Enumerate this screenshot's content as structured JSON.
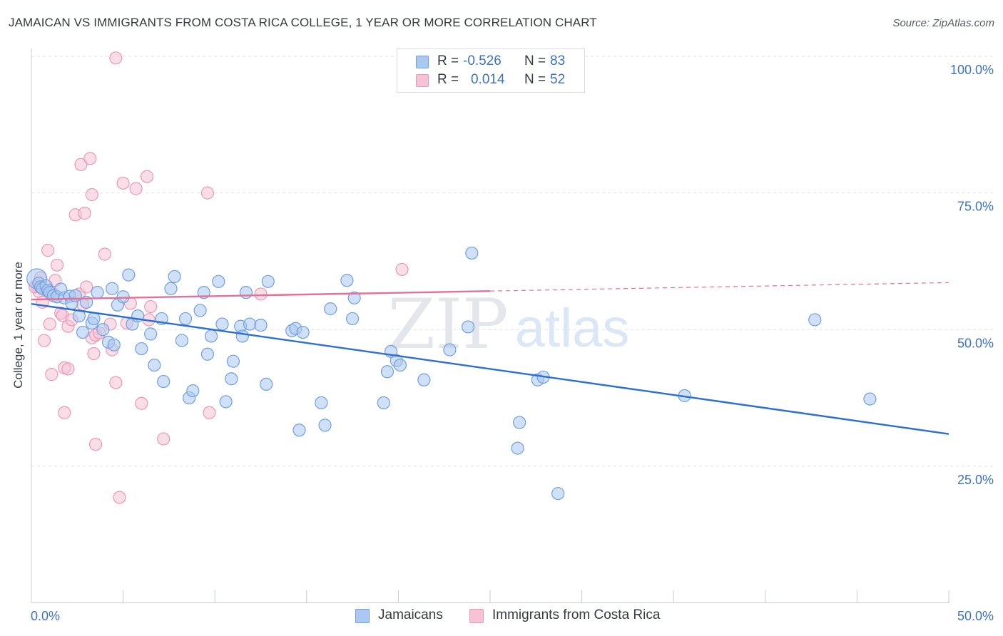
{
  "title": "JAMAICAN VS IMMIGRANTS FROM COSTA RICA COLLEGE, 1 YEAR OR MORE CORRELATION CHART",
  "source": "Source: ZipAtlas.com",
  "legend": {
    "r_label": "R =",
    "n_label": "N =",
    "rows": [
      {
        "r": "-0.526",
        "n": "83"
      },
      {
        "r": "0.014",
        "n": "52"
      }
    ]
  },
  "watermark": {
    "zip": "ZIP",
    "atlas": "atlas"
  },
  "colors": {
    "blue_fill": "#aac8f0",
    "blue_stroke": "#6f9fe0",
    "blue_line": "#2b6fd4",
    "pink_fill": "#f6c3d4",
    "pink_stroke": "#eb98b6",
    "pink_line": "#e56f97",
    "axis_text": "#3b72c4",
    "grid": "#dde1e6"
  },
  "chart_data": {
    "type": "scatter",
    "title": "JAMAICAN VS IMMIGRANTS FROM COSTA RICA COLLEGE, 1 YEAR OR MORE CORRELATION CHART",
    "xlabel": "",
    "ylabel": "College, 1 year or more",
    "xlim": [
      0,
      50
    ],
    "ylim": [
      0,
      100
    ],
    "x_tick_labels": [
      "0.0%",
      "50.0%"
    ],
    "y_ticks": [
      25,
      50,
      75,
      100
    ],
    "y_tick_labels": [
      "25.0%",
      "50.0%",
      "75.0%",
      "100.0%"
    ],
    "legend_position": "bottom",
    "series": [
      {
        "name": "Jamaicans",
        "r": -0.526,
        "n": 83,
        "trend": {
          "x0": 0,
          "y0": 54.7,
          "x1": 50,
          "y1": 30.9,
          "dashed_from": null
        },
        "points": [
          [
            0.3,
            59.3
          ],
          [
            0.4,
            58.5
          ],
          [
            0.5,
            57.8
          ],
          [
            0.6,
            57.5
          ],
          [
            0.8,
            58.0
          ],
          [
            0.9,
            57.2
          ],
          [
            1.0,
            56.8
          ],
          [
            1.2,
            56.2
          ],
          [
            1.4,
            56.0
          ],
          [
            1.6,
            57.4
          ],
          [
            1.8,
            55.8
          ],
          [
            2.1,
            56.1
          ],
          [
            2.2,
            54.8
          ],
          [
            2.4,
            56.2
          ],
          [
            2.6,
            52.5
          ],
          [
            2.8,
            49.5
          ],
          [
            3.0,
            55.0
          ],
          [
            3.3,
            51.2
          ],
          [
            3.4,
            52.0
          ],
          [
            3.6,
            56.8
          ],
          [
            3.9,
            50.0
          ],
          [
            4.2,
            47.7
          ],
          [
            4.4,
            57.5
          ],
          [
            4.5,
            47.2
          ],
          [
            4.7,
            54.5
          ],
          [
            5.0,
            56.0
          ],
          [
            5.3,
            60.0
          ],
          [
            5.5,
            51.0
          ],
          [
            5.8,
            52.5
          ],
          [
            6.0,
            46.5
          ],
          [
            6.5,
            49.2
          ],
          [
            6.7,
            43.5
          ],
          [
            7.1,
            52.0
          ],
          [
            7.2,
            40.5
          ],
          [
            7.6,
            57.5
          ],
          [
            7.8,
            59.7
          ],
          [
            8.2,
            48.0
          ],
          [
            8.4,
            52.0
          ],
          [
            8.6,
            37.5
          ],
          [
            8.8,
            38.8
          ],
          [
            9.2,
            53.5
          ],
          [
            9.4,
            56.8
          ],
          [
            9.6,
            45.5
          ],
          [
            9.8,
            48.8
          ],
          [
            10.2,
            58.8
          ],
          [
            10.4,
            51.0
          ],
          [
            10.6,
            36.8
          ],
          [
            10.9,
            41.0
          ],
          [
            11.0,
            44.2
          ],
          [
            11.4,
            50.6
          ],
          [
            11.5,
            48.8
          ],
          [
            11.7,
            56.8
          ],
          [
            11.9,
            51.0
          ],
          [
            12.5,
            50.8
          ],
          [
            12.8,
            40.0
          ],
          [
            12.9,
            58.8
          ],
          [
            14.2,
            49.8
          ],
          [
            14.4,
            50.2
          ],
          [
            14.6,
            31.6
          ],
          [
            14.8,
            49.5
          ],
          [
            15.8,
            36.6
          ],
          [
            16.0,
            32.5
          ],
          [
            16.3,
            53.8
          ],
          [
            17.2,
            59.0
          ],
          [
            17.5,
            52.0
          ],
          [
            17.6,
            55.8
          ],
          [
            19.2,
            36.6
          ],
          [
            19.4,
            42.3
          ],
          [
            19.6,
            46.0
          ],
          [
            19.9,
            44.3
          ],
          [
            20.1,
            43.5
          ],
          [
            21.4,
            40.8
          ],
          [
            22.8,
            46.3
          ],
          [
            23.8,
            50.5
          ],
          [
            24.0,
            64.0
          ],
          [
            26.5,
            28.3
          ],
          [
            26.6,
            33.0
          ],
          [
            27.6,
            40.8
          ],
          [
            27.9,
            41.3
          ],
          [
            28.7,
            20.0
          ],
          [
            35.6,
            37.9
          ],
          [
            42.7,
            51.8
          ],
          [
            45.7,
            37.3
          ]
        ]
      },
      {
        "name": "Immigrants from Costa Rica",
        "r": 0.014,
        "n": 52,
        "trend": {
          "x0": 0,
          "y0": 55.5,
          "x1": 50,
          "y1": 58.6,
          "dashed_from": 25
        },
        "points": [
          [
            0.3,
            58.0
          ],
          [
            0.4,
            57.0
          ],
          [
            0.5,
            59.5
          ],
          [
            0.6,
            55.0
          ],
          [
            0.7,
            48.0
          ],
          [
            0.8,
            57.2
          ],
          [
            0.9,
            64.5
          ],
          [
            1.0,
            51.0
          ],
          [
            1.1,
            41.8
          ],
          [
            1.2,
            56.5
          ],
          [
            1.3,
            59.0
          ],
          [
            1.4,
            61.8
          ],
          [
            1.6,
            53.0
          ],
          [
            1.7,
            52.6
          ],
          [
            1.8,
            43.0
          ],
          [
            1.8,
            34.8
          ],
          [
            2.0,
            42.8
          ],
          [
            2.0,
            50.6
          ],
          [
            2.2,
            51.8
          ],
          [
            2.4,
            71.0
          ],
          [
            2.6,
            56.5
          ],
          [
            2.7,
            80.2
          ],
          [
            2.8,
            54.6
          ],
          [
            2.9,
            71.3
          ],
          [
            3.0,
            57.8
          ],
          [
            3.2,
            81.3
          ],
          [
            3.3,
            74.7
          ],
          [
            3.3,
            48.5
          ],
          [
            3.4,
            45.6
          ],
          [
            3.5,
            49.0
          ],
          [
            3.5,
            29.0
          ],
          [
            3.7,
            49.4
          ],
          [
            4.0,
            63.8
          ],
          [
            4.3,
            51.0
          ],
          [
            4.4,
            46.3
          ],
          [
            4.6,
            40.3
          ],
          [
            4.6,
            99.7
          ],
          [
            4.8,
            19.3
          ],
          [
            5.0,
            76.8
          ],
          [
            5.2,
            51.2
          ],
          [
            5.4,
            54.8
          ],
          [
            5.7,
            75.8
          ],
          [
            6.0,
            36.5
          ],
          [
            6.3,
            78.0
          ],
          [
            6.4,
            51.8
          ],
          [
            6.5,
            54.2
          ],
          [
            7.2,
            30.0
          ],
          [
            9.6,
            75.0
          ],
          [
            9.7,
            34.8
          ],
          [
            12.5,
            56.5
          ],
          [
            20.2,
            61.0
          ],
          [
            0.2,
            57.8
          ]
        ]
      }
    ]
  },
  "bottom_legend": {
    "items": [
      {
        "label": "Jamaicans"
      },
      {
        "label": "Immigrants from Costa Rica"
      }
    ]
  }
}
